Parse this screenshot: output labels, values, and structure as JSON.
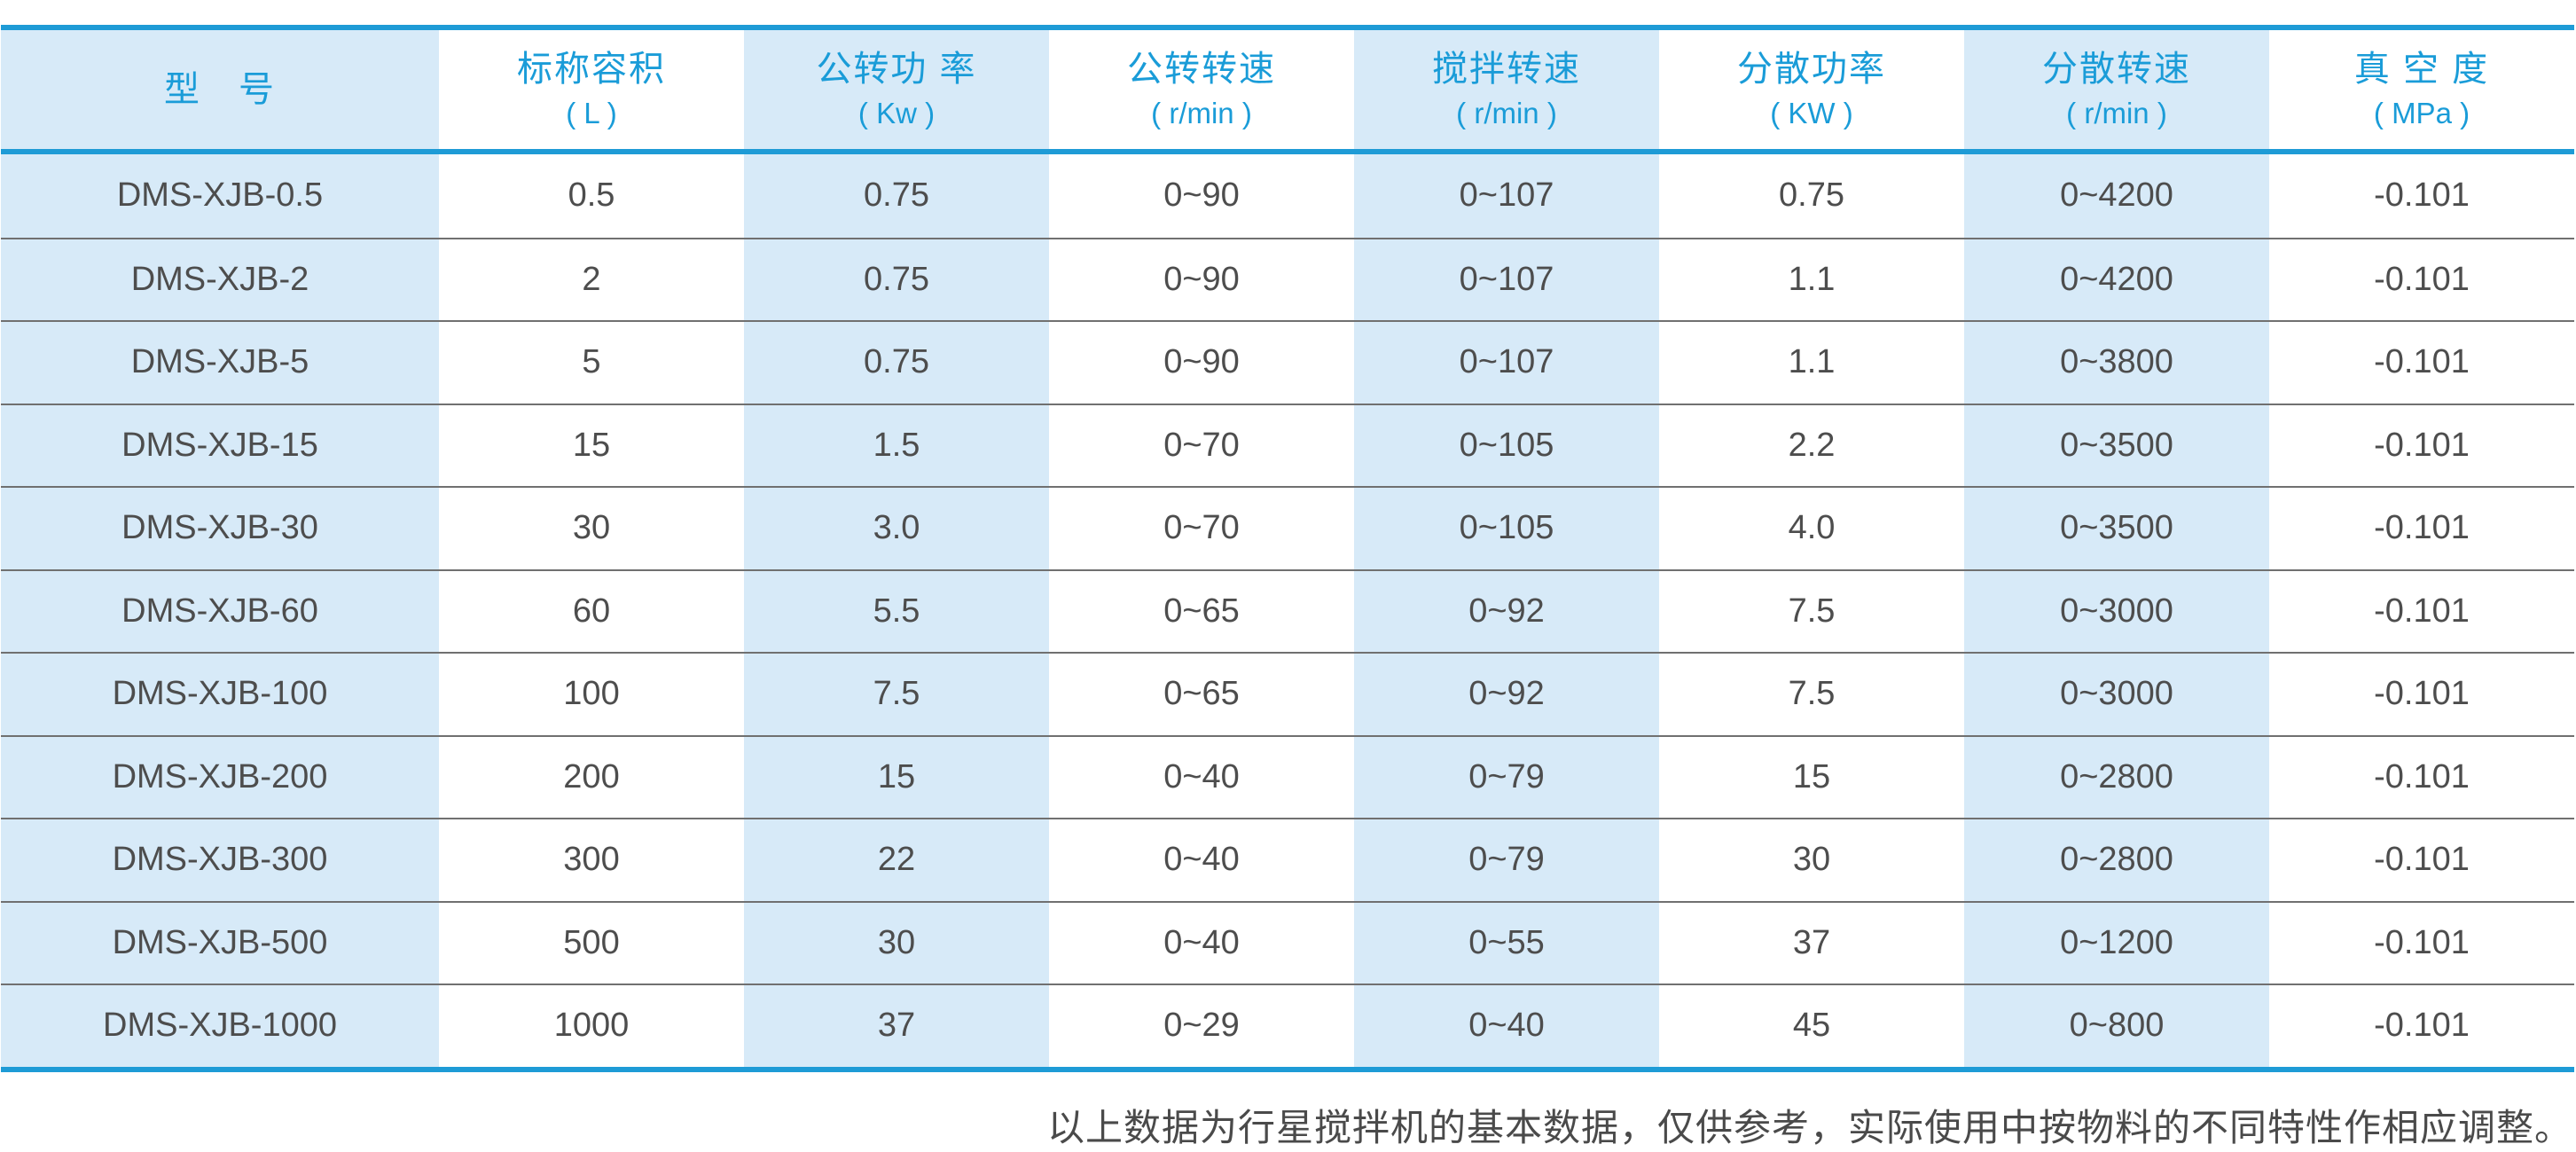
{
  "colors": {
    "rule_blue": "#1E9BD6",
    "header_text_blue": "#1A9CD8",
    "stripe_light_blue": "#D7EAF8",
    "body_text_gray": "#4D4D4D",
    "row_separator_gray": "#707070"
  },
  "table": {
    "columns": [
      {
        "title": "型　号",
        "unit": ""
      },
      {
        "title": "标称容积",
        "unit": "( L )"
      },
      {
        "title": "公转功 率",
        "unit": "( Kw )"
      },
      {
        "title": "公转转速",
        "unit": "( r/min )"
      },
      {
        "title": "搅拌转速",
        "unit": "( r/min )"
      },
      {
        "title": "分散功率",
        "unit": "( KW )"
      },
      {
        "title": "分散转速",
        "unit": "( r/min )"
      },
      {
        "title": "真 空 度",
        "unit": "( MPa )"
      }
    ],
    "rows": [
      [
        "DMS-XJB-0.5",
        "0.5",
        "0.75",
        "0~90",
        "0~107",
        "0.75",
        "0~4200",
        "-0.101"
      ],
      [
        "DMS-XJB-2",
        "2",
        "0.75",
        "0~90",
        "0~107",
        "1.1",
        "0~4200",
        "-0.101"
      ],
      [
        "DMS-XJB-5",
        "5",
        "0.75",
        "0~90",
        "0~107",
        "1.1",
        "0~3800",
        "-0.101"
      ],
      [
        "DMS-XJB-15",
        "15",
        "1.5",
        "0~70",
        "0~105",
        "2.2",
        "0~3500",
        "-0.101"
      ],
      [
        "DMS-XJB-30",
        "30",
        "3.0",
        "0~70",
        "0~105",
        "4.0",
        "0~3500",
        "-0.101"
      ],
      [
        "DMS-XJB-60",
        "60",
        "5.5",
        "0~65",
        "0~92",
        "7.5",
        "0~3000",
        "-0.101"
      ],
      [
        "DMS-XJB-100",
        "100",
        "7.5",
        "0~65",
        "0~92",
        "7.5",
        "0~3000",
        "-0.101"
      ],
      [
        "DMS-XJB-200",
        "200",
        "15",
        "0~40",
        "0~79",
        "15",
        "0~2800",
        "-0.101"
      ],
      [
        "DMS-XJB-300",
        "300",
        "22",
        "0~40",
        "0~79",
        "30",
        "0~2800",
        "-0.101"
      ],
      [
        "DMS-XJB-500",
        "500",
        "30",
        "0~40",
        "0~55",
        "37",
        "0~1200",
        "-0.101"
      ],
      [
        "DMS-XJB-1000",
        "1000",
        "37",
        "0~29",
        "0~40",
        "45",
        "0~800",
        "-0.101"
      ]
    ]
  },
  "footer": {
    "note": "以上数据为行星搅拌机的基本数据，仅供参考，实际使用中按物料的不同特性作相应调整。"
  }
}
